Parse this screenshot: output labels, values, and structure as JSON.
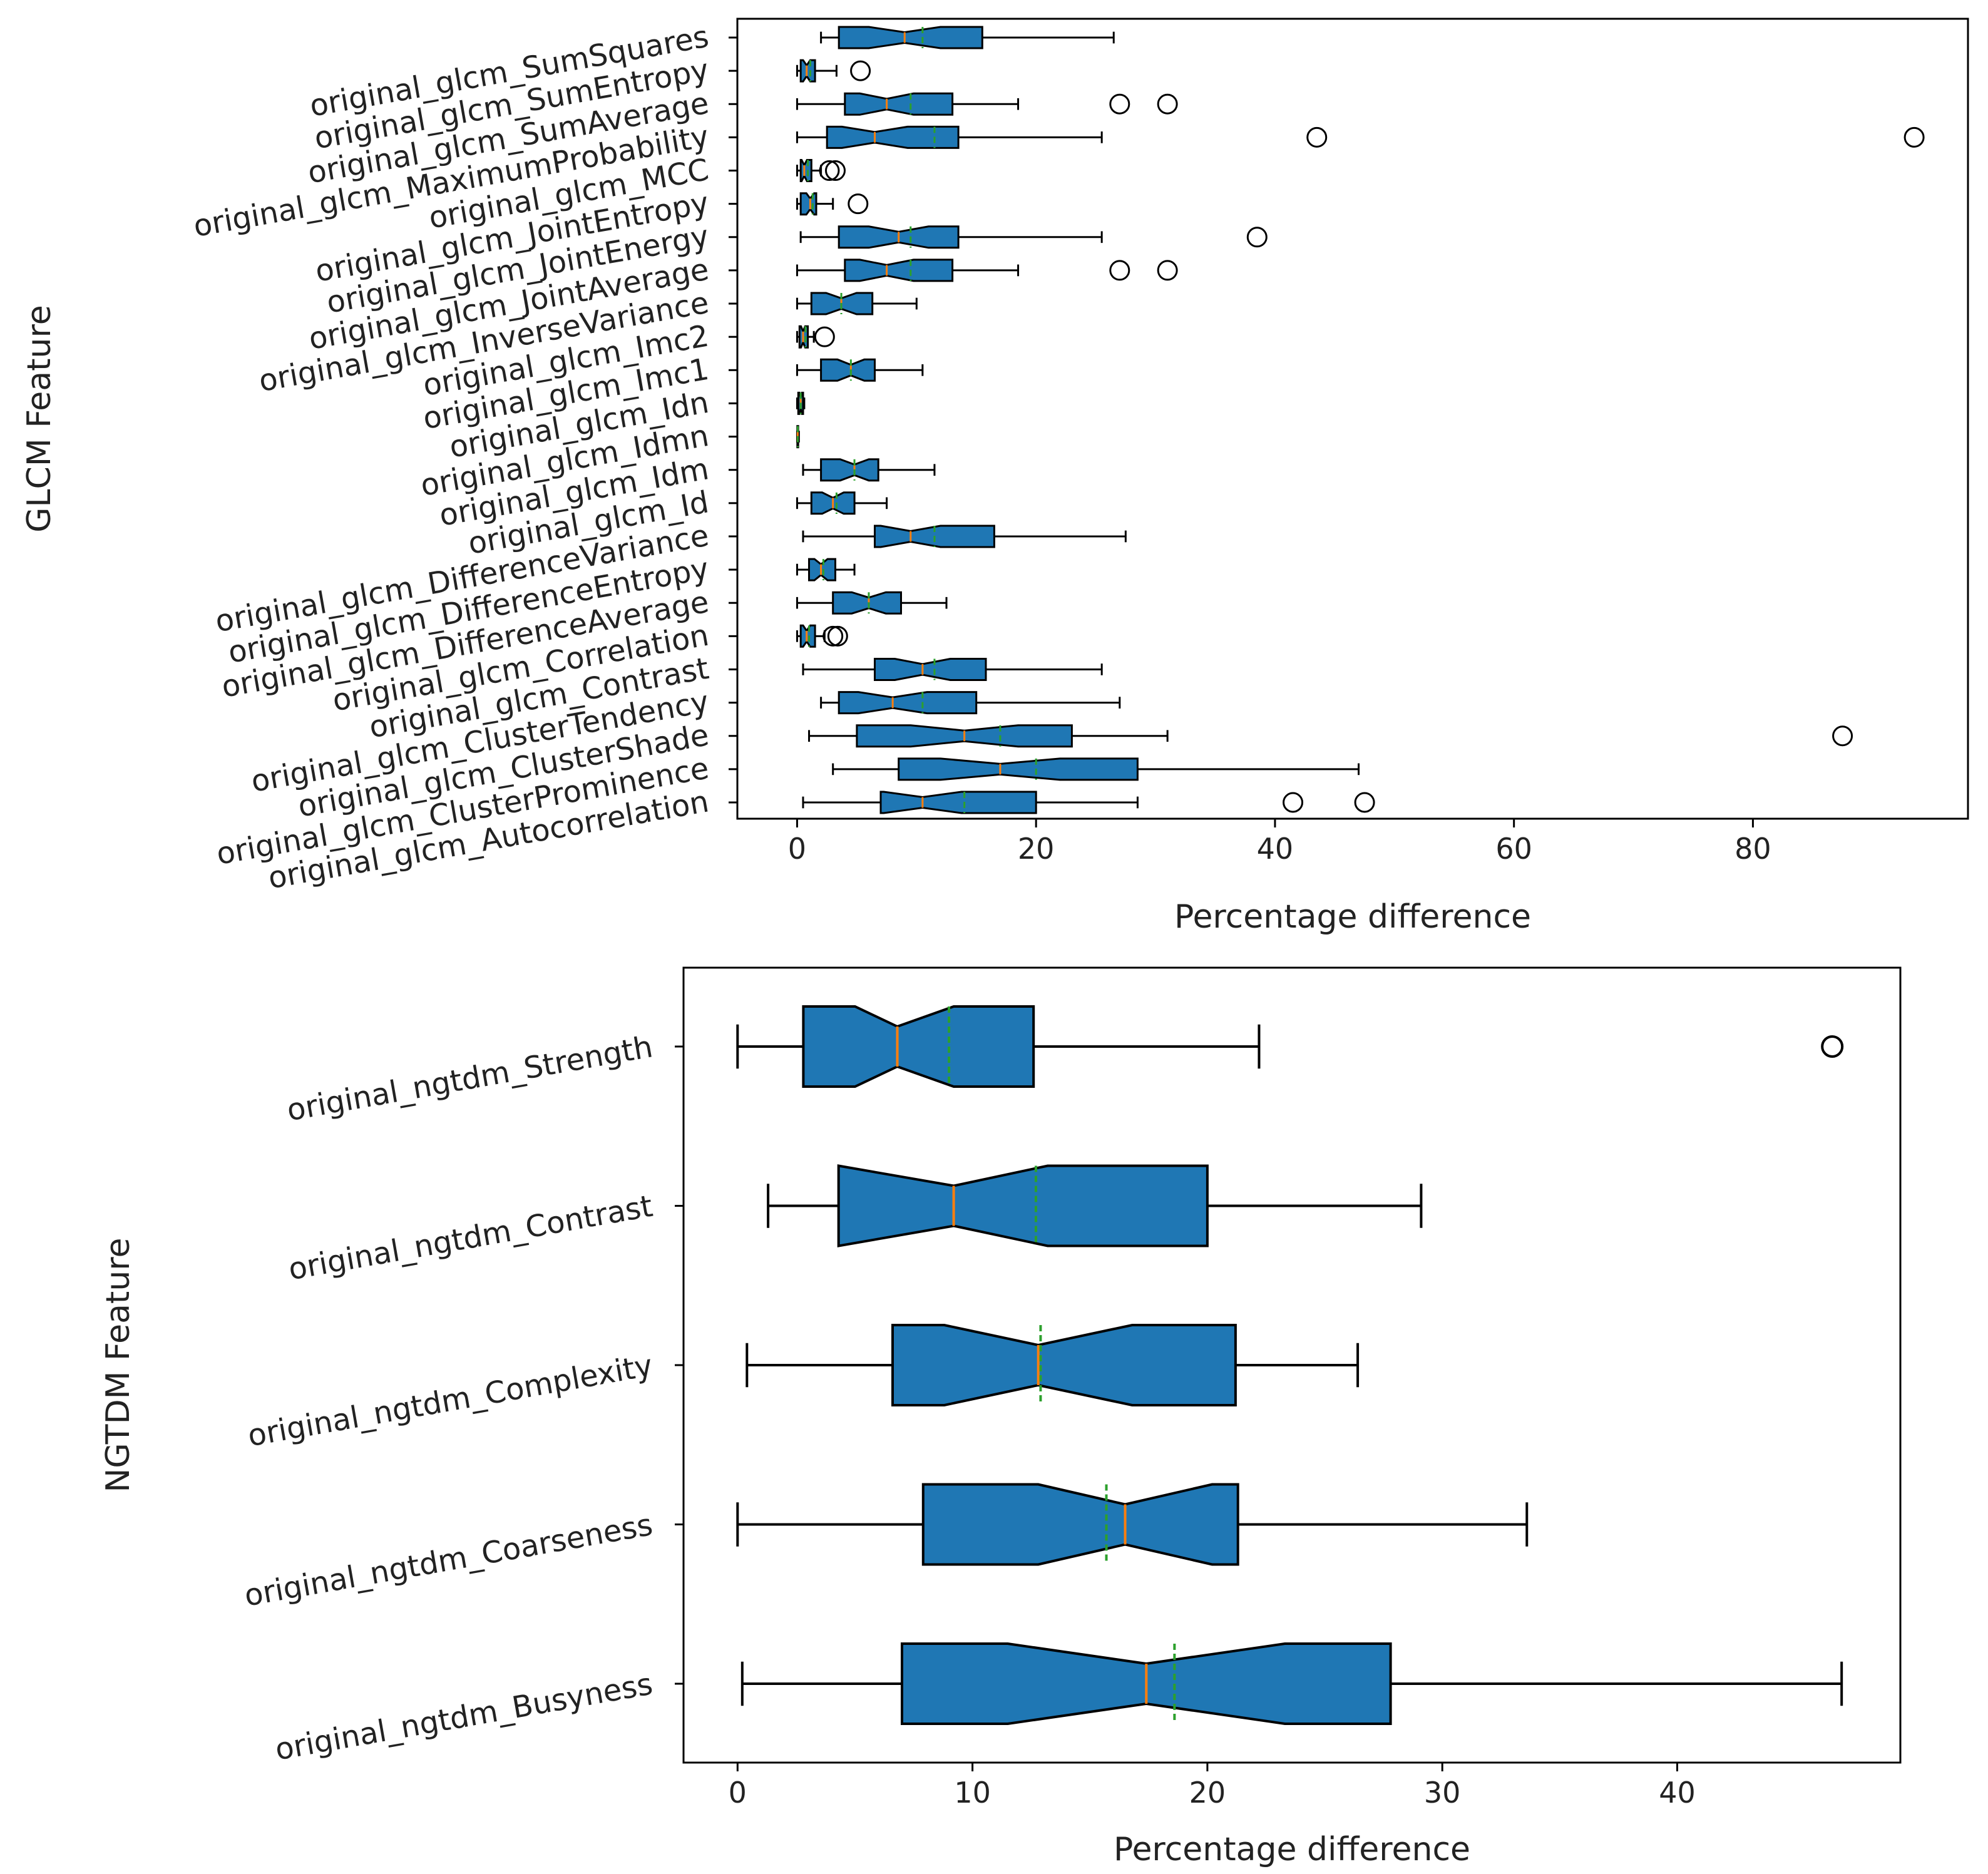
{
  "chart_data": [
    {
      "type": "boxplot",
      "orientation": "horizontal",
      "notched": true,
      "xlabel": "Percentage difference",
      "ylabel": "GLCM Feature",
      "xlim": [
        -5,
        98
      ],
      "xticks": [
        0,
        20,
        40,
        60,
        80
      ],
      "grid": false,
      "colors": {
        "box": "#1f77b4",
        "median": "#ff7f0e",
        "mean": "#2ca02c",
        "line": "#000000"
      },
      "boxes": [
        {
          "label": "original_glcm_SumSquares",
          "whislo": 2,
          "q1": 3.5,
          "med": 9,
          "mean": 10.5,
          "q3": 15.5,
          "whishi": 26.5,
          "fliers": []
        },
        {
          "label": "original_glcm_SumEntropy",
          "whislo": 0,
          "q1": 0.3,
          "med": 0.8,
          "mean": 1.1,
          "q3": 1.5,
          "whishi": 3.3,
          "fliers": [
            5.3
          ]
        },
        {
          "label": "original_glcm_SumAverage",
          "whislo": 0,
          "q1": 4,
          "med": 7.5,
          "mean": 9.5,
          "q3": 13,
          "whishi": 18.5,
          "fliers": [
            27,
            31
          ]
        },
        {
          "label": "original_glcm_MaximumProbability",
          "whislo": 0,
          "q1": 2.5,
          "med": 6.5,
          "mean": 11.5,
          "q3": 13.5,
          "whishi": 25.5,
          "fliers": [
            43.5,
            93.5
          ]
        },
        {
          "label": "original_glcm_MCC",
          "whislo": 0,
          "q1": 0.3,
          "med": 0.6,
          "mean": 0.9,
          "q3": 1.2,
          "whishi": 2,
          "fliers": [
            2.7,
            3.2
          ]
        },
        {
          "label": "original_glcm_JointEntropy",
          "whislo": 0,
          "q1": 0.3,
          "med": 1.1,
          "mean": 1.3,
          "q3": 1.6,
          "whishi": 3,
          "fliers": [
            5.1
          ]
        },
        {
          "label": "original_glcm_JointEnergy",
          "whislo": 0.3,
          "q1": 3.5,
          "med": 8.5,
          "mean": 9.5,
          "q3": 13.5,
          "whishi": 25.5,
          "fliers": [
            38.5
          ]
        },
        {
          "label": "original_glcm_JointAverage",
          "whislo": 0,
          "q1": 4,
          "med": 7.5,
          "mean": 9.5,
          "q3": 13,
          "whishi": 18.5,
          "fliers": [
            27,
            31
          ]
        },
        {
          "label": "original_glcm_InverseVariance",
          "whislo": 0,
          "q1": 1.2,
          "med": 3.7,
          "mean": 3.7,
          "q3": 6.3,
          "whishi": 10,
          "fliers": []
        },
        {
          "label": "original_glcm_Imc2",
          "whislo": 0,
          "q1": 0.2,
          "med": 0.5,
          "mean": 0.7,
          "q3": 0.9,
          "whishi": 1.4,
          "fliers": [
            2.3
          ]
        },
        {
          "label": "original_glcm_Imc1",
          "whislo": 0,
          "q1": 2,
          "med": 4.5,
          "mean": 4.5,
          "q3": 6.5,
          "whishi": 10.5,
          "fliers": []
        },
        {
          "label": "original_glcm_Idn",
          "whislo": 0,
          "q1": 0.1,
          "med": 0.3,
          "mean": 0.3,
          "q3": 0.5,
          "whishi": 0.6,
          "fliers": []
        },
        {
          "label": "original_glcm_Idmn",
          "whislo": 0,
          "q1": 0.02,
          "med": 0.05,
          "mean": 0.06,
          "q3": 0.09,
          "whishi": 0.15,
          "fliers": []
        },
        {
          "label": "original_glcm_Idm",
          "whislo": 0.5,
          "q1": 2,
          "med": 4.8,
          "mean": 4.8,
          "q3": 6.8,
          "whishi": 11.5,
          "fliers": []
        },
        {
          "label": "original_glcm_Id",
          "whislo": 0,
          "q1": 1.2,
          "med": 3,
          "mean": 3.3,
          "q3": 4.8,
          "whishi": 7.5,
          "fliers": []
        },
        {
          "label": "original_glcm_DifferenceVariance",
          "whislo": 0.5,
          "q1": 6.5,
          "med": 9.5,
          "mean": 11.5,
          "q3": 16.5,
          "whishi": 27.5,
          "fliers": []
        },
        {
          "label": "original_glcm_DifferenceEntropy",
          "whislo": 0,
          "q1": 1,
          "med": 2,
          "mean": 2.2,
          "q3": 3.2,
          "whishi": 4.8,
          "fliers": []
        },
        {
          "label": "original_glcm_DifferenceAverage",
          "whislo": 0,
          "q1": 3,
          "med": 6,
          "mean": 6,
          "q3": 8.7,
          "whishi": 12.5,
          "fliers": []
        },
        {
          "label": "original_glcm_Correlation",
          "whislo": 0,
          "q1": 0.3,
          "med": 0.8,
          "mean": 1,
          "q3": 1.5,
          "whishi": 2.3,
          "fliers": [
            3,
            3.4
          ]
        },
        {
          "label": "original_glcm_Contrast",
          "whislo": 0.5,
          "q1": 6.5,
          "med": 10.5,
          "mean": 11.5,
          "q3": 15.8,
          "whishi": 25.5,
          "fliers": []
        },
        {
          "label": "original_glcm_ClusterTendency",
          "whislo": 2,
          "q1": 3.5,
          "med": 8,
          "mean": 10.5,
          "q3": 15,
          "whishi": 27,
          "fliers": []
        },
        {
          "label": "original_glcm_ClusterShade",
          "whislo": 1,
          "q1": 5,
          "med": 14,
          "mean": 17,
          "q3": 23,
          "whishi": 31,
          "fliers": [
            87.5
          ]
        },
        {
          "label": "original_glcm_ClusterProminence",
          "whislo": 3,
          "q1": 8.5,
          "med": 17,
          "mean": 20,
          "q3": 28.5,
          "whishi": 47,
          "fliers": []
        },
        {
          "label": "original_glcm_Autocorrelation",
          "whislo": 0.5,
          "q1": 7,
          "med": 10.5,
          "mean": 14,
          "q3": 20,
          "whishi": 28.5,
          "fliers": [
            41.5,
            47.5
          ]
        }
      ]
    },
    {
      "type": "boxplot",
      "orientation": "horizontal",
      "notched": true,
      "xlabel": "Percentage difference",
      "ylabel": "NGTDM Feature",
      "xlim": [
        -2.3,
        49.5
      ],
      "xticks": [
        0,
        10,
        20,
        30,
        40
      ],
      "grid": false,
      "colors": {
        "box": "#1f77b4",
        "median": "#ff7f0e",
        "mean": "#2ca02c",
        "line": "#000000"
      },
      "boxes": [
        {
          "label": "original_ngtdm_Strength",
          "whislo": 0,
          "q1": 2.8,
          "med": 6.8,
          "mean": 9,
          "q3": 12.6,
          "whishi": 22.2,
          "fliers": [
            46.6
          ],
          "notch_lo": 5,
          "notch_hi": 9.2
        },
        {
          "label": "original_ngtdm_Contrast",
          "whislo": 1.3,
          "q1": 4.3,
          "med": 9.2,
          "mean": 12.7,
          "q3": 20,
          "whishi": 29.1,
          "fliers": [],
          "notch_lo": 4.3,
          "notch_hi": 13.2
        },
        {
          "label": "original_ngtdm_Complexity",
          "whislo": 0.4,
          "q1": 6.6,
          "med": 12.8,
          "mean": 12.9,
          "q3": 21.2,
          "whishi": 26.4,
          "fliers": [],
          "notch_lo": 8.8,
          "notch_hi": 16.8
        },
        {
          "label": "original_ngtdm_Coarseness",
          "whislo": 0,
          "q1": 7.9,
          "med": 16.5,
          "mean": 15.7,
          "q3": 21.3,
          "whishi": 33.6,
          "fliers": [],
          "notch_lo": 12.8,
          "notch_hi": 20.2
        },
        {
          "label": "original_ngtdm_Busyness",
          "whislo": 0.2,
          "q1": 7,
          "med": 17.4,
          "mean": 18.6,
          "q3": 27.8,
          "whishi": 47,
          "fliers": [],
          "notch_lo": 11.5,
          "notch_hi": 23.3
        }
      ]
    }
  ]
}
